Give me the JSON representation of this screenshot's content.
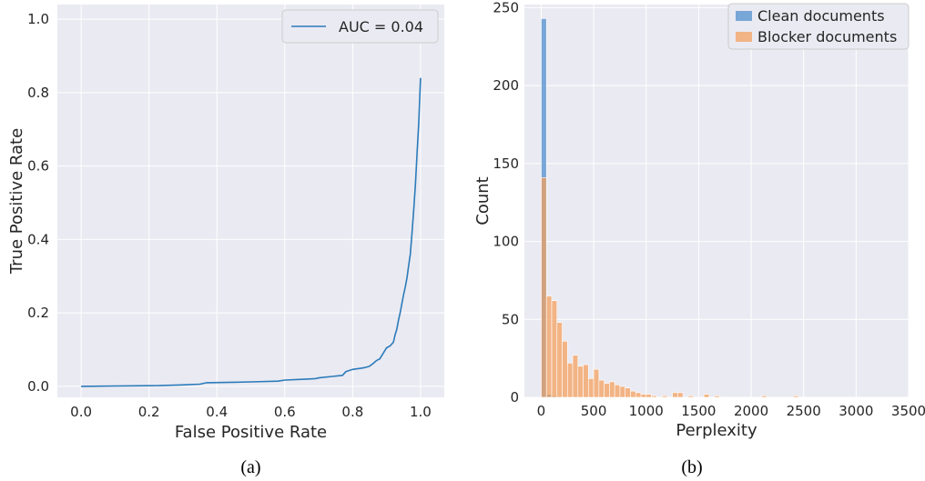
{
  "chart_data": [
    {
      "type": "line",
      "caption": "(a)",
      "xlabel": "False Positive Rate",
      "ylabel": "True Positive Rate",
      "xlim": [
        -0.07,
        1.07
      ],
      "ylim": [
        -0.03,
        1.04
      ],
      "xticks": [
        "0.0",
        "0.2",
        "0.4",
        "0.6",
        "0.8",
        "1.0"
      ],
      "yticks": [
        "0.0",
        "0.2",
        "0.4",
        "0.6",
        "0.8",
        "1.0"
      ],
      "grid": true,
      "legend_position": "top-right",
      "series": [
        {
          "name": "AUC = 0.04",
          "color": "#2b7bba",
          "x": [
            0.0,
            0.1,
            0.23,
            0.3,
            0.35,
            0.37,
            0.45,
            0.5,
            0.58,
            0.6,
            0.65,
            0.69,
            0.7,
            0.74,
            0.77,
            0.78,
            0.8,
            0.83,
            0.84,
            0.85,
            0.86,
            0.87,
            0.88,
            0.89,
            0.9,
            0.91,
            0.92,
            0.925,
            0.93,
            0.935,
            0.94,
            0.945,
            0.95,
            0.955,
            0.96,
            0.965,
            0.97,
            0.975,
            0.98,
            0.985,
            0.99,
            0.995,
            1.0
          ],
          "y": [
            0.0,
            0.001,
            0.002,
            0.004,
            0.006,
            0.01,
            0.011,
            0.012,
            0.014,
            0.017,
            0.019,
            0.021,
            0.023,
            0.027,
            0.03,
            0.04,
            0.046,
            0.05,
            0.052,
            0.055,
            0.062,
            0.07,
            0.075,
            0.09,
            0.105,
            0.11,
            0.12,
            0.14,
            0.155,
            0.18,
            0.2,
            0.225,
            0.25,
            0.27,
            0.295,
            0.33,
            0.36,
            0.42,
            0.48,
            0.55,
            0.64,
            0.72,
            0.84
          ]
        }
      ]
    },
    {
      "type": "bar",
      "caption": "(b)",
      "xlabel": "Perplexity",
      "ylabel": "Count",
      "xlim": [
        -160,
        3500
      ],
      "ylim": [
        0,
        252
      ],
      "xticks": [
        "0",
        "500",
        "1000",
        "1500",
        "2000",
        "2500",
        "3000",
        "3500"
      ],
      "yticks": [
        "0",
        "50",
        "100",
        "150",
        "200",
        "250"
      ],
      "grid": true,
      "legend_position": "top-right",
      "bin_width": 50,
      "bin_start": 0,
      "series": [
        {
          "name": "Clean documents",
          "color": "#4c8ccc",
          "values": [
            243,
            2,
            1
          ]
        },
        {
          "name": "Blocker documents",
          "color": "#f5a05a",
          "values": [
            141,
            65,
            62,
            48,
            36,
            22,
            27,
            20,
            21,
            12,
            18,
            11,
            9,
            10,
            8,
            7,
            6,
            4,
            3,
            2,
            2,
            1,
            0,
            1,
            0,
            3,
            3,
            0,
            1,
            0,
            0,
            2,
            0,
            1,
            0,
            0,
            0,
            0,
            0,
            0,
            0,
            0,
            1,
            0,
            0,
            0,
            0,
            0,
            1
          ]
        }
      ]
    }
  ]
}
